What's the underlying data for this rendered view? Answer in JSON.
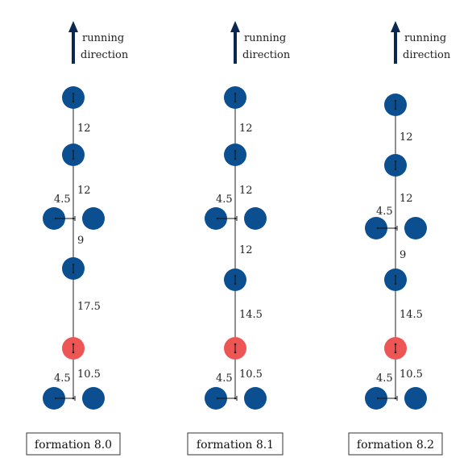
{
  "colors": {
    "blue": "#0b4f91",
    "red": "#ee5555",
    "line": "#222222",
    "arrow": "#0a2750"
  },
  "header": {
    "line1": "running",
    "line2": "direction"
  },
  "formations": [
    {
      "caption": "formation 8.0",
      "labels": {
        "d1": "12",
        "d2": "12",
        "d3": "9",
        "d4": "17.5",
        "d5": "10.5",
        "side_top": "4.5",
        "side_bottom": "4.5"
      }
    },
    {
      "caption": "formation 8.1",
      "labels": {
        "d1": "12",
        "d2": "12",
        "d3": "12",
        "d4": "14.5",
        "d5": "10.5",
        "side_top": "4.5",
        "side_bottom": "4.5"
      }
    },
    {
      "caption": "formation 8.2",
      "labels": {
        "d1": "12",
        "d2": "12",
        "d3": "9",
        "d4": "14.5",
        "d5": "10.5",
        "side_top": "4.5",
        "side_bottom": "4.5"
      }
    }
  ]
}
